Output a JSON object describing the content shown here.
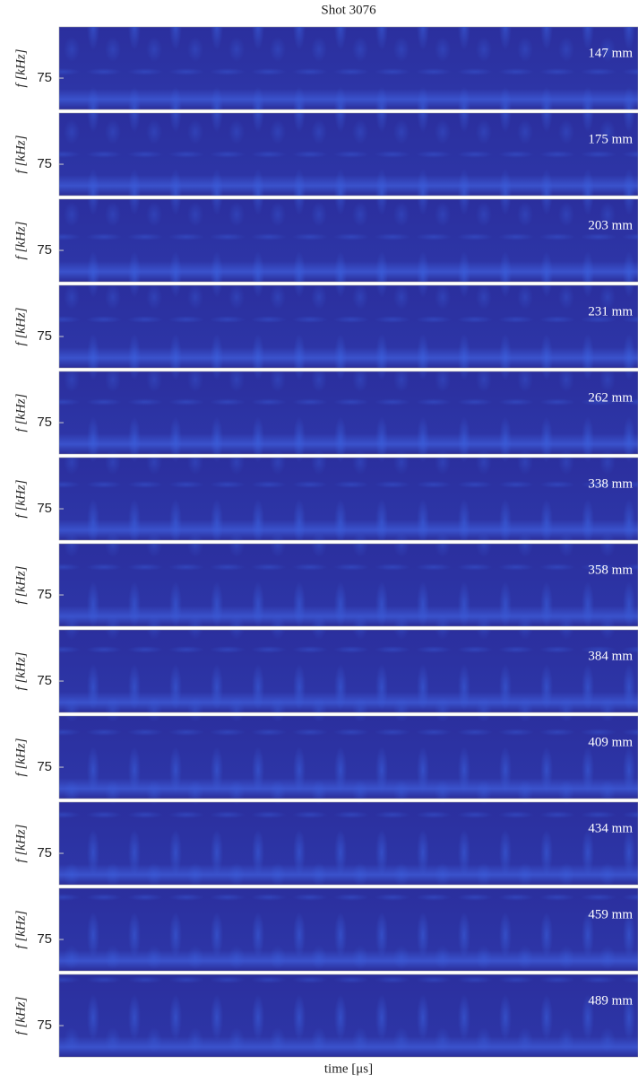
{
  "chart_data": {
    "type": "spectrogram",
    "title": "Shot 3076",
    "x_label": "time [μs]",
    "panels": [
      {
        "label": "147 mm",
        "y_label": "f [kHz]",
        "yticks": [
          75
        ]
      },
      {
        "label": "175 mm",
        "y_label": "f [kHz]",
        "yticks": [
          75
        ]
      },
      {
        "label": "203 mm",
        "y_label": "f [kHz]",
        "yticks": [
          75
        ]
      },
      {
        "label": "231 mm",
        "y_label": "f [kHz]",
        "yticks": [
          75
        ]
      },
      {
        "label": "262 mm",
        "y_label": "f [kHz]",
        "yticks": [
          75
        ]
      },
      {
        "label": "338 mm",
        "y_label": "f [kHz]",
        "yticks": [
          75
        ]
      },
      {
        "label": "358 mm",
        "y_label": "f [kHz]",
        "yticks": [
          75
        ]
      },
      {
        "label": "384 mm",
        "y_label": "f [kHz]",
        "yticks": [
          75
        ]
      },
      {
        "label": "409 mm",
        "y_label": "f [kHz]",
        "yticks": [
          75
        ]
      },
      {
        "label": "434 mm",
        "y_label": "f [kHz]",
        "yticks": [
          75
        ]
      },
      {
        "label": "459 mm",
        "y_label": "f [kHz]",
        "yticks": [
          75
        ]
      },
      {
        "label": "489 mm",
        "y_label": "f [kHz]",
        "yticks": [
          75
        ]
      }
    ]
  }
}
